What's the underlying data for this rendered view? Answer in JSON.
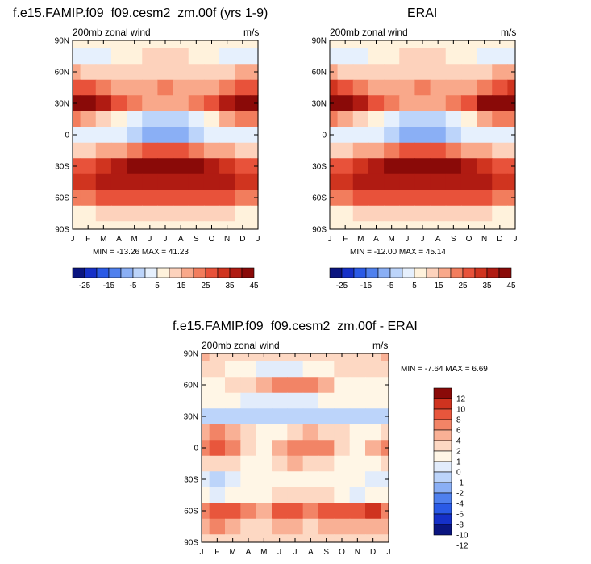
{
  "panels": [
    {
      "title": "f.e15.FAMIP.f09_f09.cesm2_zm.00f (yrs 1-9)",
      "left_label": "200mb zonal wind",
      "right_label": "m/s",
      "stats": "MIN = -13.26  MAX = 41.23",
      "ylabels": [
        "90N",
        "60N",
        "30N",
        "0",
        "30S",
        "60S",
        "90S"
      ],
      "xlabels": [
        "J",
        "F",
        "M",
        "A",
        "M",
        "J",
        "J",
        "A",
        "S",
        "O",
        "N",
        "D",
        "J"
      ],
      "colorbar": {
        "levels": [
          -30,
          -25,
          -20,
          -15,
          -10,
          -5,
          0,
          5,
          10,
          15,
          20,
          25,
          30,
          35,
          40,
          45
        ],
        "tick_labels": [
          "-25",
          "-15",
          "-5",
          "5",
          "15",
          "25",
          "35",
          "45"
        ]
      }
    },
    {
      "title": "ERAI",
      "left_label": "200mb zonal wind",
      "right_label": "m/s",
      "stats": "MIN = -12.00  MAX = 45.14",
      "ylabels": [
        "90N",
        "60N",
        "30N",
        "0",
        "30S",
        "60S",
        "90S"
      ],
      "xlabels": [
        "J",
        "F",
        "M",
        "A",
        "M",
        "J",
        "J",
        "A",
        "S",
        "O",
        "N",
        "D",
        "J"
      ],
      "colorbar": {
        "levels": [
          -30,
          -25,
          -20,
          -15,
          -10,
          -5,
          0,
          5,
          10,
          15,
          20,
          25,
          30,
          35,
          40,
          45
        ],
        "tick_labels": [
          "-25",
          "-15",
          "-5",
          "5",
          "15",
          "25",
          "35",
          "45"
        ]
      }
    },
    {
      "title": "f.e15.FAMIP.f09_f09.cesm2_zm.00f - ERAI",
      "left_label": "200mb zonal wind",
      "right_label": "m/s",
      "stats": "MIN =   -7.64  MAX =    6.69",
      "ylabels": [
        "90N",
        "60N",
        "30N",
        "0",
        "30S",
        "60S",
        "90S"
      ],
      "xlabels": [
        "J",
        "F",
        "M",
        "A",
        "M",
        "J",
        "J",
        "A",
        "S",
        "O",
        "N",
        "D",
        "J"
      ],
      "colorbar": {
        "levels": [
          -12,
          -10,
          -8,
          -6,
          -4,
          -2,
          -1,
          0,
          1,
          2,
          4,
          6,
          8,
          10,
          12
        ],
        "tick_labels": [
          "12",
          "10",
          "8",
          "6",
          "4",
          "2",
          "1",
          "0",
          "-1",
          "-2",
          "-4",
          "-6",
          "-8",
          "-10",
          "-12"
        ]
      }
    }
  ],
  "colors": {
    "wind_palette": [
      "#0a1580",
      "#1530c8",
      "#2a5ae6",
      "#4f80ee",
      "#8aaff5",
      "#bcd4fa",
      "#e6f0fd",
      "#fff2dc",
      "#fdd2bc",
      "#f9a88a",
      "#f27d5d",
      "#e8523a",
      "#d0341f",
      "#b01b12",
      "#8a0a08"
    ],
    "diff_palette": [
      "#0a1580",
      "#1530c8",
      "#2a5ae6",
      "#4f80ee",
      "#8aaff5",
      "#bcd4fa",
      "#e2ecfb",
      "#fff6e6",
      "#fdd8c3",
      "#f9b095",
      "#f28466",
      "#e8563c",
      "#cf331f",
      "#8a0a08"
    ]
  },
  "chart_data": [
    {
      "type": "heatmap",
      "title": "f.e15.FAMIP.f09_f09.cesm2_zm.00f (yrs 1-9)",
      "variable": "200mb zonal wind",
      "units": "m/s",
      "x": [
        "J",
        "F",
        "M",
        "A",
        "M",
        "J",
        "J",
        "A",
        "S",
        "O",
        "N",
        "D",
        "J"
      ],
      "y_lat": [
        90,
        75,
        60,
        45,
        30,
        15,
        0,
        -15,
        -30,
        -45,
        -60,
        -75,
        -90
      ],
      "z": [
        [
          0,
          0,
          0,
          0,
          0,
          0,
          0,
          0,
          0,
          0,
          0,
          0,
          0
        ],
        [
          -5,
          -3,
          -1,
          1,
          3,
          5,
          6,
          5,
          3,
          0,
          -3,
          -5,
          -5
        ],
        [
          10,
          8,
          6,
          5,
          6,
          8,
          9,
          8,
          7,
          6,
          8,
          10,
          10
        ],
        [
          24,
          22,
          18,
          14,
          12,
          14,
          15,
          13,
          12,
          14,
          18,
          22,
          24
        ],
        [
          41,
          38,
          30,
          22,
          15,
          12,
          14,
          12,
          15,
          22,
          32,
          40,
          41
        ],
        [
          18,
          14,
          8,
          2,
          -3,
          -6,
          -8,
          -6,
          -3,
          2,
          10,
          16,
          18
        ],
        [
          -4,
          -3,
          -3,
          -4,
          -6,
          -11,
          -13,
          -11,
          -8,
          -5,
          -4,
          -4,
          -4
        ],
        [
          8,
          9,
          10,
          14,
          18,
          22,
          23,
          22,
          18,
          14,
          10,
          8,
          8
        ],
        [
          22,
          24,
          28,
          32,
          36,
          38,
          40,
          39,
          36,
          32,
          28,
          24,
          22
        ],
        [
          26,
          28,
          30,
          32,
          34,
          32,
          31,
          32,
          34,
          33,
          30,
          27,
          26
        ],
        [
          16,
          18,
          20,
          22,
          23,
          21,
          20,
          21,
          23,
          24,
          22,
          18,
          16
        ],
        [
          3,
          4,
          6,
          7,
          8,
          8,
          8,
          8,
          8,
          7,
          6,
          4,
          3
        ],
        [
          0,
          0,
          0,
          0,
          0,
          0,
          0,
          0,
          0,
          0,
          0,
          0,
          0
        ]
      ],
      "min": -13.26,
      "max": 41.23,
      "levels": [
        -30,
        -25,
        -20,
        -15,
        -10,
        -5,
        0,
        5,
        10,
        15,
        20,
        25,
        30,
        35,
        40,
        45
      ]
    },
    {
      "type": "heatmap",
      "title": "ERAI",
      "variable": "200mb zonal wind",
      "units": "m/s",
      "x": [
        "J",
        "F",
        "M",
        "A",
        "M",
        "J",
        "J",
        "A",
        "S",
        "O",
        "N",
        "D",
        "J"
      ],
      "y_lat": [
        90,
        75,
        60,
        45,
        30,
        15,
        0,
        -15,
        -30,
        -45,
        -60,
        -75,
        -90
      ],
      "z": [
        [
          0,
          0,
          0,
          0,
          0,
          0,
          0,
          0,
          0,
          0,
          0,
          0,
          0
        ],
        [
          -5,
          -3,
          -1,
          1,
          3,
          5,
          6,
          5,
          3,
          0,
          -3,
          -5,
          -5
        ],
        [
          11,
          9,
          7,
          5,
          6,
          8,
          9,
          8,
          7,
          7,
          9,
          11,
          11
        ],
        [
          25,
          23,
          19,
          14,
          12,
          14,
          15,
          13,
          12,
          14,
          19,
          23,
          25
        ],
        [
          45,
          42,
          33,
          24,
          16,
          12,
          14,
          12,
          16,
          24,
          36,
          44,
          45
        ],
        [
          19,
          14,
          8,
          1,
          -4,
          -7,
          -9,
          -7,
          -4,
          1,
          10,
          16,
          19
        ],
        [
          -4,
          -3,
          -3,
          -4,
          -6,
          -11,
          -12,
          -11,
          -8,
          -5,
          -4,
          -4,
          -4
        ],
        [
          8,
          9,
          10,
          14,
          18,
          22,
          23,
          22,
          18,
          14,
          10,
          8,
          8
        ],
        [
          22,
          24,
          28,
          32,
          36,
          39,
          42,
          40,
          37,
          32,
          28,
          24,
          22
        ],
        [
          26,
          28,
          30,
          32,
          34,
          32,
          31,
          32,
          34,
          33,
          30,
          27,
          26
        ],
        [
          16,
          18,
          20,
          22,
          23,
          21,
          20,
          21,
          23,
          24,
          22,
          18,
          16
        ],
        [
          3,
          4,
          6,
          7,
          8,
          8,
          8,
          8,
          8,
          7,
          6,
          4,
          3
        ],
        [
          0,
          0,
          0,
          0,
          0,
          0,
          0,
          0,
          0,
          0,
          0,
          0,
          0
        ]
      ],
      "min": -12.0,
      "max": 45.14,
      "levels": [
        -30,
        -25,
        -20,
        -15,
        -10,
        -5,
        0,
        5,
        10,
        15,
        20,
        25,
        30,
        35,
        40,
        45
      ]
    },
    {
      "type": "heatmap",
      "title": "f.e15.FAMIP.f09_f09.cesm2_zm.00f - ERAI",
      "variable": "200mb zonal wind",
      "units": "m/s",
      "x": [
        "J",
        "F",
        "M",
        "A",
        "M",
        "J",
        "J",
        "A",
        "S",
        "O",
        "N",
        "D",
        "J"
      ],
      "y_lat": [
        90,
        75,
        60,
        45,
        30,
        15,
        0,
        -15,
        -30,
        -45,
        -60,
        -75,
        -90
      ],
      "z": [
        [
          1,
          0.5,
          0,
          0,
          0,
          0,
          0,
          0,
          0,
          0,
          0,
          0.5,
          1
        ],
        [
          0.5,
          0,
          -0.5,
          -1,
          -2,
          -2,
          -1.5,
          -1,
          -0.5,
          0,
          0,
          0.5,
          0.5
        ],
        [
          -0.5,
          -0.5,
          0,
          0.5,
          1,
          2,
          3,
          3,
          1,
          -0.5,
          -0.5,
          -0.5,
          -0.5
        ],
        [
          -0.5,
          -1,
          -1,
          -1.5,
          -1.5,
          -2,
          -2,
          -1.5,
          -1,
          -1,
          -1,
          -1,
          -0.5
        ],
        [
          -3,
          -4,
          -3,
          -3.5,
          -4,
          -3,
          -3,
          -2.5,
          -3,
          -3,
          -3,
          -3,
          -3
        ],
        [
          1,
          2,
          1,
          0,
          -1,
          -0.5,
          0.5,
          1,
          0.5,
          0,
          -0.5,
          -0.5,
          0
        ],
        [
          3,
          5,
          2,
          0,
          -1,
          1,
          3,
          3,
          2,
          0,
          -0.5,
          1,
          3
        ],
        [
          0,
          0.5,
          0,
          -0.5,
          -1,
          0,
          1,
          0.5,
          0,
          -0.5,
          -1,
          -0.5,
          0
        ],
        [
          -2,
          -3,
          -2,
          -1,
          -1,
          -1,
          -1,
          -1,
          -0.5,
          -0.5,
          -1,
          -1.5,
          -2
        ],
        [
          -1,
          -2,
          -1,
          -1,
          -0.5,
          0,
          0,
          0,
          0,
          -1,
          -1.5,
          -1,
          -1
        ],
        [
          2,
          5,
          4,
          3,
          1,
          4,
          4,
          2,
          4,
          5,
          5,
          6,
          2
        ],
        [
          1,
          2,
          1,
          0.5,
          0,
          1,
          1,
          0.5,
          1,
          1,
          1,
          1,
          1
        ],
        [
          0,
          0,
          0,
          0,
          0,
          0,
          0,
          0,
          0,
          0,
          0,
          0,
          0
        ]
      ],
      "min": -7.64,
      "max": 6.69,
      "levels": [
        -12,
        -10,
        -8,
        -6,
        -4,
        -2,
        -1,
        0,
        1,
        2,
        4,
        6,
        8,
        10,
        12
      ]
    }
  ]
}
